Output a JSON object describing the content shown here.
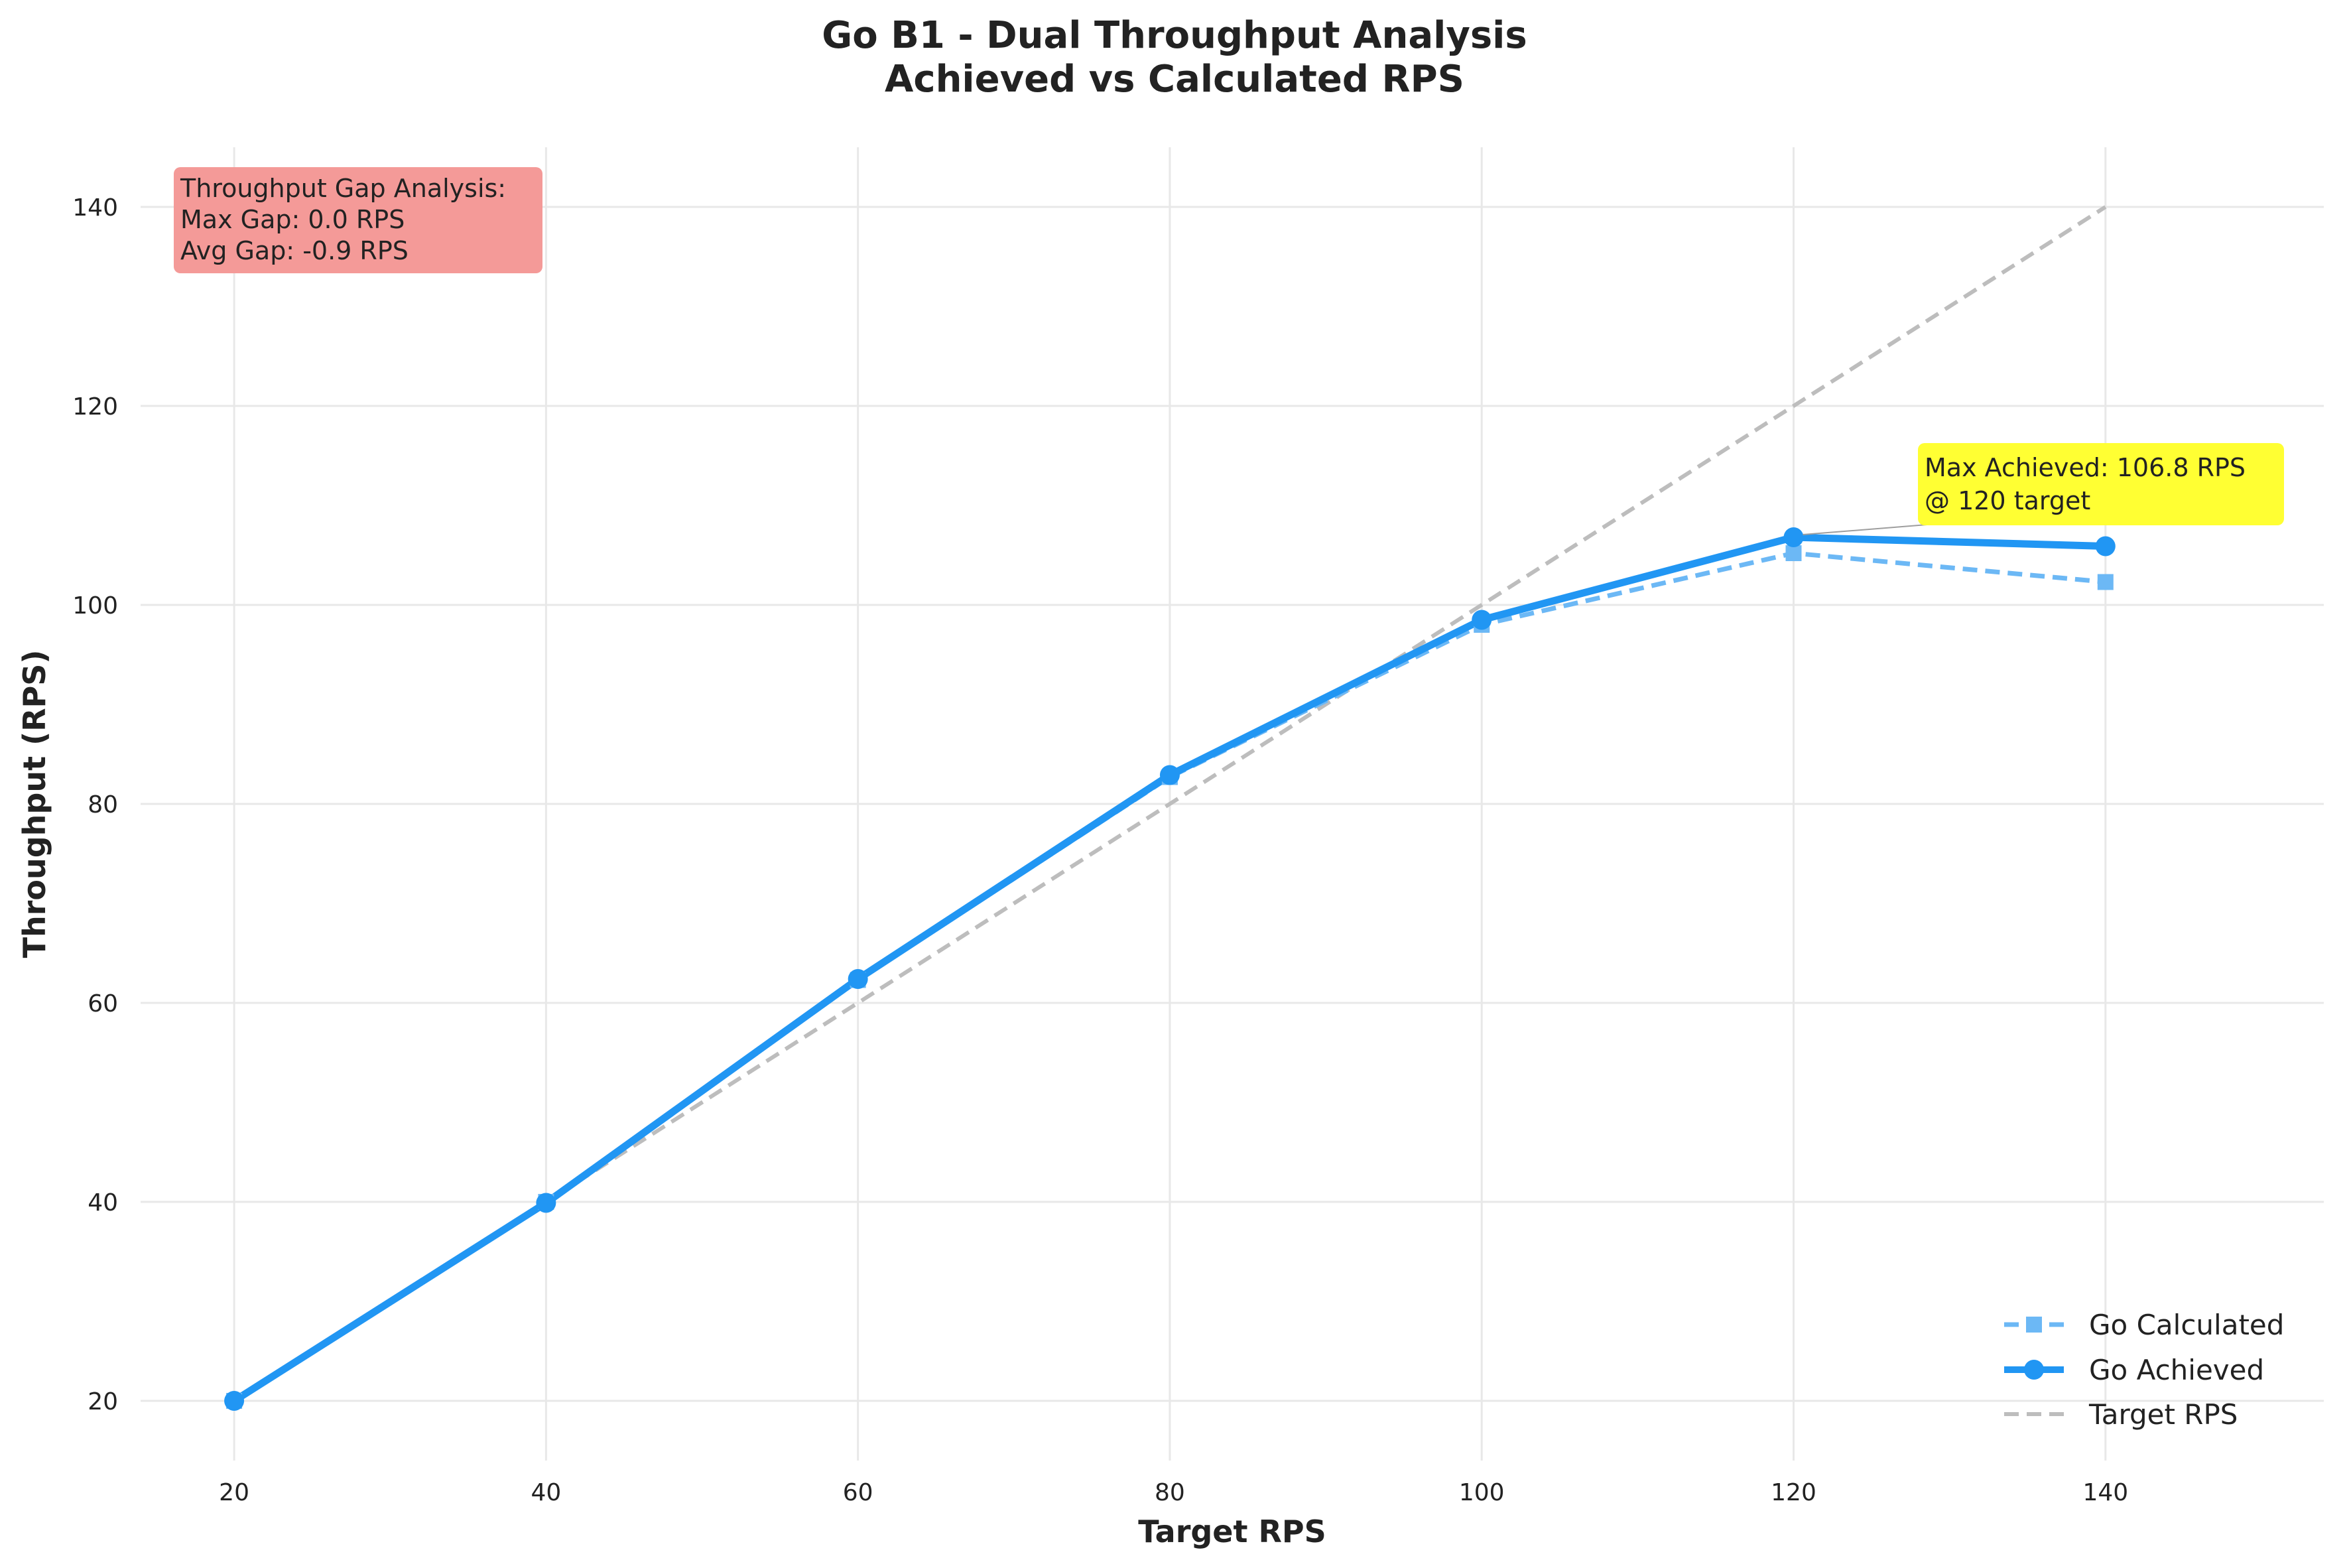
{
  "chart_data": {
    "type": "line",
    "title": "Go B1 - Dual Throughput Analysis",
    "subtitle": "Achieved vs Calculated RPS",
    "xlabel": "Target RPS",
    "ylabel": "Throughput (RPS)",
    "xlim": [
      14,
      154
    ],
    "ylim": [
      14,
      146
    ],
    "xticks": [
      20,
      40,
      60,
      80,
      100,
      120,
      140
    ],
    "yticks": [
      20,
      40,
      60,
      80,
      100,
      120,
      140
    ],
    "grid": true,
    "legend_position": "bottom-right",
    "x": [
      20,
      40,
      60,
      80,
      100,
      120,
      140
    ],
    "series": [
      {
        "name": "Go Calculated",
        "values": [
          20,
          40,
          62.3,
          82.7,
          98.0,
          105.2,
          102.3
        ],
        "color": "#6cb8f5",
        "style": "dashed",
        "marker": "square"
      },
      {
        "name": "Go Achieved",
        "values": [
          20,
          39.9,
          62.4,
          82.9,
          98.5,
          106.8,
          105.9
        ],
        "color": "#2196f3",
        "style": "solid",
        "marker": "circle"
      },
      {
        "name": "Target RPS",
        "values": [
          20,
          40,
          60,
          80,
          100,
          120,
          140
        ],
        "color": "#bdbdbd",
        "style": "dashed",
        "marker": "none"
      }
    ],
    "annotations": {
      "gap_box": {
        "lines": [
          "Throughput Gap Analysis:",
          "Max Gap: 0.0 RPS",
          "Avg Gap: -0.9 RPS"
        ],
        "color": "#f49a98"
      },
      "max_box": {
        "lines": [
          "Max Achieved: 106.8 RPS",
          "@ 120 target"
        ],
        "color": "#ffff33",
        "point": {
          "x": 120,
          "y": 106.8
        }
      }
    }
  }
}
